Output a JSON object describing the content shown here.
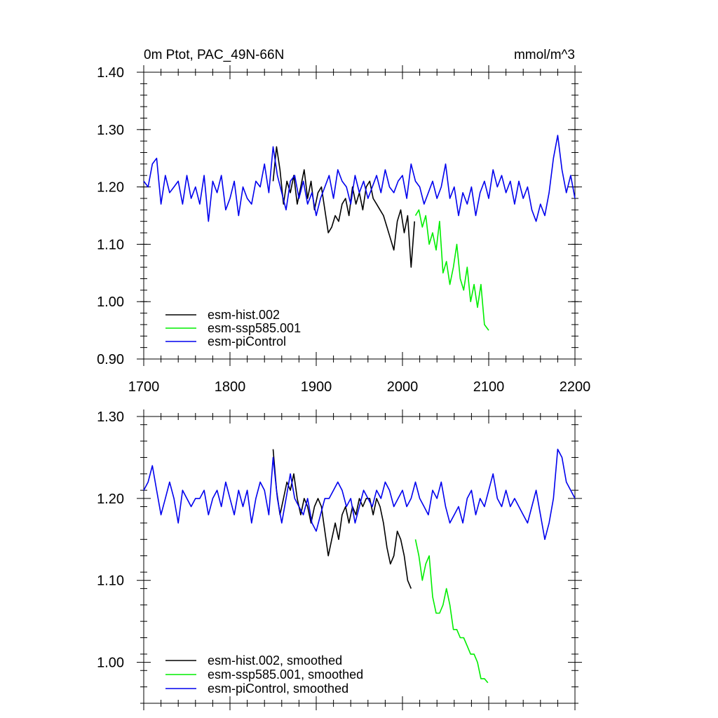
{
  "chart_data": [
    {
      "type": "line",
      "title": "0m Ptot, PAC_49N-66N",
      "units": "mmol/m^3",
      "xlim": [
        1700,
        2200
      ],
      "ylim": [
        0.9,
        1.4
      ],
      "x_ticks": [
        1700,
        1800,
        1900,
        2000,
        2100,
        2200
      ],
      "x_tick_labels": [
        "1700",
        "1800",
        "1900",
        "2000",
        "2100",
        "2200"
      ],
      "y_ticks": [
        0.9,
        1.0,
        1.1,
        1.2,
        1.3,
        1.4
      ],
      "y_tick_labels": [
        "0.90",
        "1.00",
        "1.10",
        "1.20",
        "1.30",
        "1.40"
      ],
      "legend_position": "bottom-left",
      "series": [
        {
          "name": "esm-hist.002",
          "color": "#000000",
          "x": [
            1850,
            1854,
            1858,
            1862,
            1866,
            1870,
            1874,
            1878,
            1882,
            1886,
            1890,
            1894,
            1898,
            1902,
            1906,
            1910,
            1914,
            1918,
            1922,
            1926,
            1930,
            1934,
            1938,
            1942,
            1946,
            1950,
            1954,
            1958,
            1962,
            1966,
            1970,
            1974,
            1978,
            1982,
            1986,
            1990,
            1994,
            1998,
            2002,
            2006,
            2010,
            2014
          ],
          "values": [
            1.21,
            1.27,
            1.23,
            1.17,
            1.21,
            1.19,
            1.22,
            1.17,
            1.2,
            1.23,
            1.18,
            1.21,
            1.16,
            1.19,
            1.2,
            1.16,
            1.12,
            1.13,
            1.15,
            1.14,
            1.17,
            1.18,
            1.15,
            1.2,
            1.17,
            1.19,
            1.16,
            1.2,
            1.21,
            1.18,
            1.17,
            1.16,
            1.15,
            1.13,
            1.11,
            1.09,
            1.14,
            1.16,
            1.12,
            1.15,
            1.06,
            1.14
          ]
        },
        {
          "name": "esm-ssp585.001",
          "color": "#00ee00",
          "x": [
            2015,
            2019,
            2023,
            2027,
            2031,
            2035,
            2039,
            2043,
            2047,
            2051,
            2055,
            2059,
            2063,
            2067,
            2071,
            2075,
            2079,
            2083,
            2087,
            2091,
            2095,
            2100
          ],
          "values": [
            1.15,
            1.16,
            1.13,
            1.15,
            1.1,
            1.12,
            1.09,
            1.14,
            1.05,
            1.07,
            1.03,
            1.06,
            1.1,
            1.04,
            1.02,
            1.06,
            1.0,
            1.03,
            0.99,
            1.03,
            0.96,
            0.95
          ]
        },
        {
          "name": "esm-piControl",
          "color": "#0000ee",
          "x": [
            1700,
            1705,
            1710,
            1715,
            1720,
            1725,
            1730,
            1735,
            1740,
            1745,
            1750,
            1755,
            1760,
            1765,
            1770,
            1775,
            1780,
            1785,
            1790,
            1795,
            1800,
            1805,
            1810,
            1815,
            1820,
            1825,
            1830,
            1835,
            1840,
            1845,
            1850,
            1855,
            1860,
            1865,
            1870,
            1875,
            1880,
            1885,
            1890,
            1895,
            1900,
            1905,
            1910,
            1915,
            1920,
            1925,
            1930,
            1935,
            1940,
            1945,
            1950,
            1955,
            1960,
            1965,
            1970,
            1975,
            1980,
            1985,
            1990,
            1995,
            2000,
            2005,
            2010,
            2015,
            2020,
            2025,
            2030,
            2035,
            2040,
            2045,
            2050,
            2055,
            2060,
            2065,
            2070,
            2075,
            2080,
            2085,
            2090,
            2095,
            2100,
            2105,
            2110,
            2115,
            2120,
            2125,
            2130,
            2135,
            2140,
            2145,
            2150,
            2155,
            2160,
            2165,
            2170,
            2175,
            2180,
            2185,
            2190,
            2195,
            2200
          ],
          "values": [
            1.21,
            1.2,
            1.24,
            1.25,
            1.17,
            1.22,
            1.19,
            1.2,
            1.21,
            1.17,
            1.22,
            1.18,
            1.2,
            1.17,
            1.22,
            1.14,
            1.21,
            1.19,
            1.22,
            1.16,
            1.18,
            1.21,
            1.15,
            1.2,
            1.18,
            1.17,
            1.21,
            1.2,
            1.24,
            1.19,
            1.27,
            1.22,
            1.19,
            1.16,
            1.21,
            1.22,
            1.18,
            1.21,
            1.17,
            1.19,
            1.15,
            1.18,
            1.2,
            1.22,
            1.18,
            1.23,
            1.21,
            1.2,
            1.17,
            1.22,
            1.19,
            1.21,
            1.18,
            1.2,
            1.22,
            1.19,
            1.23,
            1.2,
            1.19,
            1.21,
            1.22,
            1.18,
            1.24,
            1.21,
            1.2,
            1.17,
            1.19,
            1.21,
            1.18,
            1.2,
            1.24,
            1.18,
            1.2,
            1.15,
            1.19,
            1.17,
            1.2,
            1.15,
            1.19,
            1.21,
            1.18,
            1.23,
            1.2,
            1.22,
            1.19,
            1.21,
            1.17,
            1.21,
            1.18,
            1.2,
            1.16,
            1.14,
            1.17,
            1.15,
            1.19,
            1.25,
            1.29,
            1.23,
            1.19,
            1.22,
            1.18
          ]
        }
      ]
    },
    {
      "type": "line",
      "title": "",
      "xlim": [
        1700,
        2200
      ],
      "ylim": [
        0.95,
        1.3
      ],
      "x_ticks": [
        1700,
        1800,
        1900,
        2000,
        2100,
        2200
      ],
      "x_tick_labels": [
        "",
        "",
        "",
        "",
        "",
        ""
      ],
      "y_ticks": [
        1.0,
        1.1,
        1.2,
        1.3
      ],
      "y_tick_labels": [
        "1.00",
        "1.10",
        "1.20",
        "1.30"
      ],
      "legend_position": "bottom-left",
      "series": [
        {
          "name": "esm-hist.002, smoothed",
          "color": "#000000",
          "x": [
            1850,
            1854,
            1858,
            1862,
            1866,
            1870,
            1874,
            1878,
            1882,
            1886,
            1890,
            1894,
            1898,
            1902,
            1906,
            1910,
            1914,
            1918,
            1922,
            1926,
            1930,
            1934,
            1938,
            1942,
            1946,
            1950,
            1954,
            1958,
            1962,
            1966,
            1970,
            1974,
            1978,
            1982,
            1986,
            1990,
            1994,
            1998,
            2002,
            2006,
            2010
          ],
          "values": [
            1.26,
            1.21,
            1.18,
            1.2,
            1.22,
            1.21,
            1.23,
            1.2,
            1.18,
            1.2,
            1.19,
            1.17,
            1.19,
            1.2,
            1.19,
            1.16,
            1.13,
            1.15,
            1.17,
            1.15,
            1.18,
            1.19,
            1.17,
            1.19,
            1.18,
            1.2,
            1.19,
            1.2,
            1.2,
            1.18,
            1.2,
            1.19,
            1.17,
            1.14,
            1.12,
            1.13,
            1.16,
            1.15,
            1.13,
            1.1,
            1.09
          ]
        },
        {
          "name": "esm-ssp585.001, smoothed",
          "color": "#00ee00",
          "x": [
            2015,
            2019,
            2023,
            2027,
            2031,
            2035,
            2039,
            2043,
            2047,
            2051,
            2055,
            2059,
            2063,
            2067,
            2071,
            2075,
            2079,
            2083,
            2087,
            2091,
            2095,
            2099
          ],
          "values": [
            1.15,
            1.13,
            1.1,
            1.12,
            1.13,
            1.08,
            1.06,
            1.06,
            1.07,
            1.09,
            1.07,
            1.04,
            1.04,
            1.03,
            1.03,
            1.02,
            1.01,
            1.01,
            1.0,
            0.98,
            0.98,
            0.975
          ]
        },
        {
          "name": "esm-piControl, smoothed",
          "color": "#0000ee",
          "x": [
            1700,
            1705,
            1710,
            1715,
            1720,
            1725,
            1730,
            1735,
            1740,
            1745,
            1750,
            1755,
            1760,
            1765,
            1770,
            1775,
            1780,
            1785,
            1790,
            1795,
            1800,
            1805,
            1810,
            1815,
            1820,
            1825,
            1830,
            1835,
            1840,
            1845,
            1850,
            1855,
            1860,
            1865,
            1870,
            1875,
            1880,
            1885,
            1890,
            1895,
            1900,
            1905,
            1910,
            1915,
            1920,
            1925,
            1930,
            1935,
            1940,
            1945,
            1950,
            1955,
            1960,
            1965,
            1970,
            1975,
            1980,
            1985,
            1990,
            1995,
            2000,
            2005,
            2010,
            2015,
            2020,
            2025,
            2030,
            2035,
            2040,
            2045,
            2050,
            2055,
            2060,
            2065,
            2070,
            2075,
            2080,
            2085,
            2090,
            2095,
            2100,
            2105,
            2110,
            2115,
            2120,
            2125,
            2130,
            2135,
            2140,
            2145,
            2150,
            2155,
            2160,
            2165,
            2170,
            2175,
            2180,
            2185,
            2190,
            2195,
            2200
          ],
          "values": [
            1.21,
            1.22,
            1.24,
            1.21,
            1.18,
            1.2,
            1.22,
            1.2,
            1.17,
            1.21,
            1.2,
            1.19,
            1.2,
            1.2,
            1.21,
            1.18,
            1.2,
            1.21,
            1.19,
            1.22,
            1.2,
            1.18,
            1.21,
            1.19,
            1.21,
            1.17,
            1.2,
            1.22,
            1.21,
            1.18,
            1.25,
            1.2,
            1.17,
            1.2,
            1.23,
            1.2,
            1.19,
            1.18,
            1.2,
            1.17,
            1.16,
            1.18,
            1.2,
            1.2,
            1.21,
            1.22,
            1.21,
            1.19,
            1.2,
            1.17,
            1.19,
            1.21,
            1.2,
            1.19,
            1.21,
            1.2,
            1.22,
            1.21,
            1.19,
            1.2,
            1.21,
            1.19,
            1.2,
            1.22,
            1.2,
            1.19,
            1.18,
            1.21,
            1.2,
            1.22,
            1.19,
            1.17,
            1.18,
            1.19,
            1.17,
            1.2,
            1.21,
            1.18,
            1.2,
            1.19,
            1.21,
            1.23,
            1.2,
            1.19,
            1.21,
            1.19,
            1.2,
            1.19,
            1.18,
            1.17,
            1.19,
            1.21,
            1.18,
            1.15,
            1.17,
            1.2,
            1.26,
            1.25,
            1.22,
            1.21,
            1.2
          ]
        }
      ]
    }
  ]
}
